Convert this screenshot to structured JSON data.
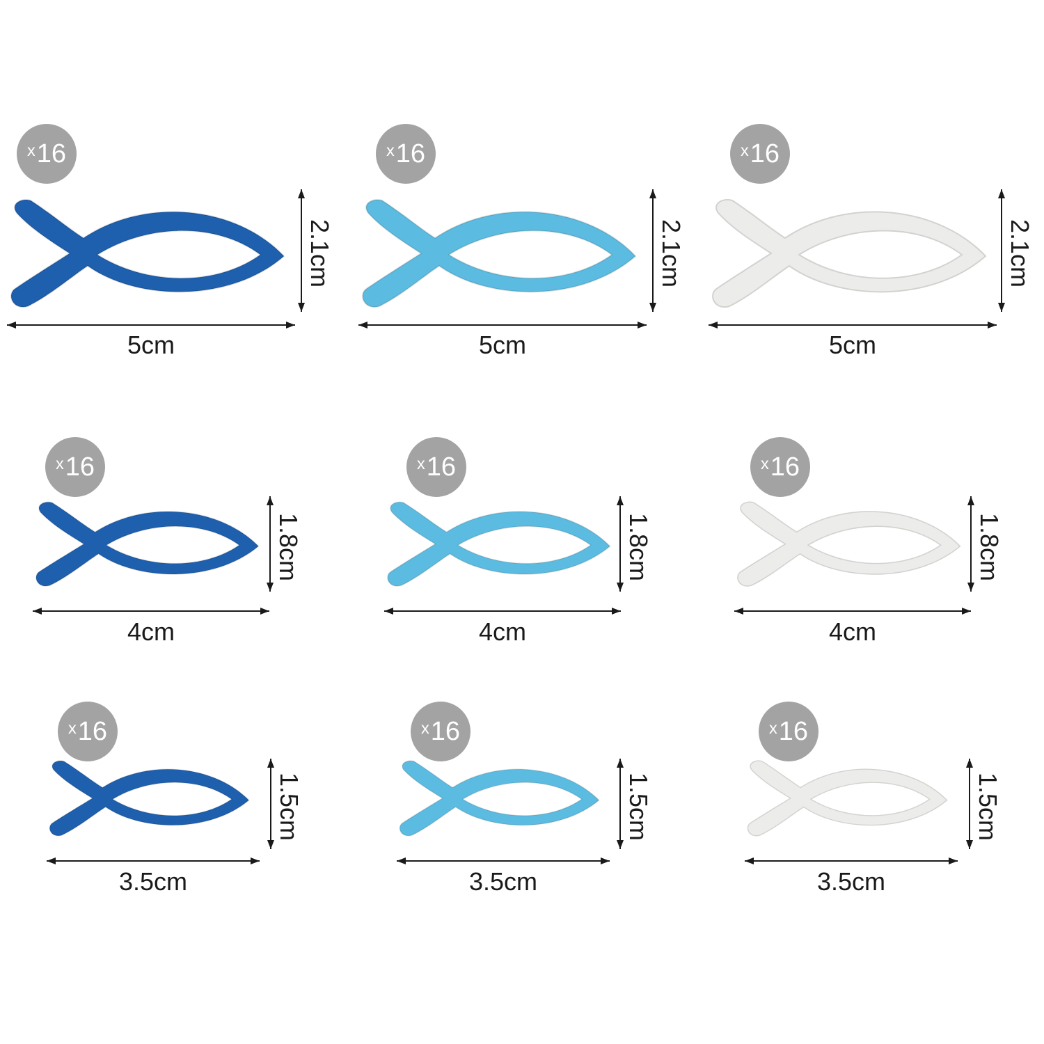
{
  "groups": [
    {
      "color_name": "dark-blue",
      "color": "#1e5fae",
      "badge_x": "x",
      "badge_count": "16",
      "width_label": "5cm",
      "height_label": "2.1cm"
    },
    {
      "color_name": "light-blue",
      "color": "#5cbbe0",
      "badge_x": "x",
      "badge_count": "16",
      "width_label": "5cm",
      "height_label": "2.1cm"
    },
    {
      "color_name": "white",
      "color": "#ececea",
      "badge_x": "x",
      "badge_count": "16",
      "width_label": "5cm",
      "height_label": "2.1cm"
    },
    {
      "color_name": "dark-blue",
      "color": "#1e5fae",
      "badge_x": "x",
      "badge_count": "16",
      "width_label": "4cm",
      "height_label": "1.8cm"
    },
    {
      "color_name": "light-blue",
      "color": "#5cbbe0",
      "badge_x": "x",
      "badge_count": "16",
      "width_label": "4cm",
      "height_label": "1.8cm"
    },
    {
      "color_name": "white",
      "color": "#ececea",
      "badge_x": "x",
      "badge_count": "16",
      "width_label": "4cm",
      "height_label": "1.8cm"
    },
    {
      "color_name": "dark-blue",
      "color": "#1e5fae",
      "badge_x": "x",
      "badge_count": "16",
      "width_label": "3.5cm",
      "height_label": "1.5cm"
    },
    {
      "color_name": "light-blue",
      "color": "#5cbbe0",
      "badge_x": "x",
      "badge_count": "16",
      "width_label": "3.5cm",
      "height_label": "1.5cm"
    },
    {
      "color_name": "white",
      "color": "#ececea",
      "badge_x": "x",
      "badge_count": "16",
      "width_label": "3.5cm",
      "height_label": "1.5cm"
    }
  ],
  "colors": {
    "badge": "#a3a3a3",
    "arrow": "#1a1a1a",
    "text": "#1a1a1a"
  }
}
